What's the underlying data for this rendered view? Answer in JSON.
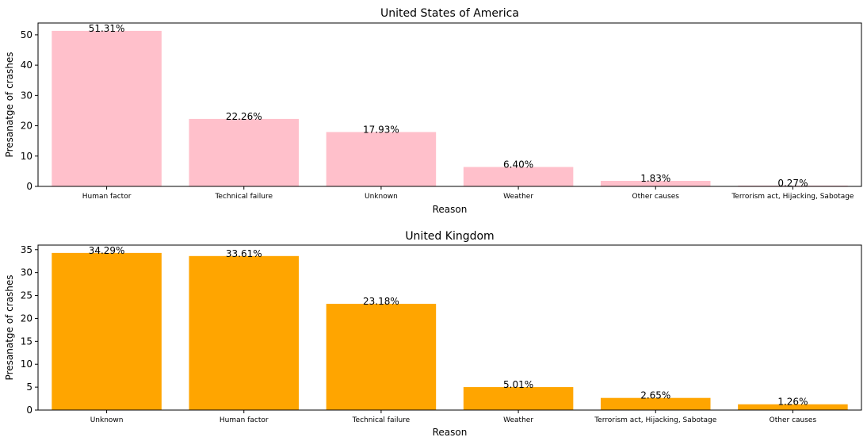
{
  "chart_data": [
    {
      "type": "bar",
      "title": "United States of America",
      "xlabel": "Reason",
      "ylabel": "Presanatge of crashes",
      "categories": [
        "Human factor",
        "Technical failure",
        "Unknown",
        "Weather",
        "Other causes",
        "Terrorism act, Hijacking, Sabotage"
      ],
      "values": [
        51.31,
        22.26,
        17.93,
        6.4,
        1.83,
        0.27
      ],
      "data_labels": [
        "51.31%",
        "22.26%",
        "17.93%",
        "6.40%",
        "1.83%",
        "0.27%"
      ],
      "yticks": [
        0,
        10,
        20,
        30,
        40,
        50
      ],
      "ylim": [
        0,
        53.9
      ],
      "color": "#ffc0cb",
      "grid": false
    },
    {
      "type": "bar",
      "title": "United Kingdom",
      "xlabel": "Reason",
      "ylabel": "Presanatge of crashes",
      "categories": [
        "Unknown",
        "Human factor",
        "Technical failure",
        "Weather",
        "Terrorism act, Hijacking, Sabotage",
        "Other causes"
      ],
      "values": [
        34.29,
        33.61,
        23.18,
        5.01,
        2.65,
        1.26
      ],
      "data_labels": [
        "34.29%",
        "33.61%",
        "23.18%",
        "5.01%",
        "2.65%",
        "1.26%"
      ],
      "yticks": [
        0,
        5,
        10,
        15,
        20,
        25,
        30,
        35
      ],
      "ylim": [
        0,
        36.0
      ],
      "color": "#ffa500",
      "grid": false
    }
  ]
}
